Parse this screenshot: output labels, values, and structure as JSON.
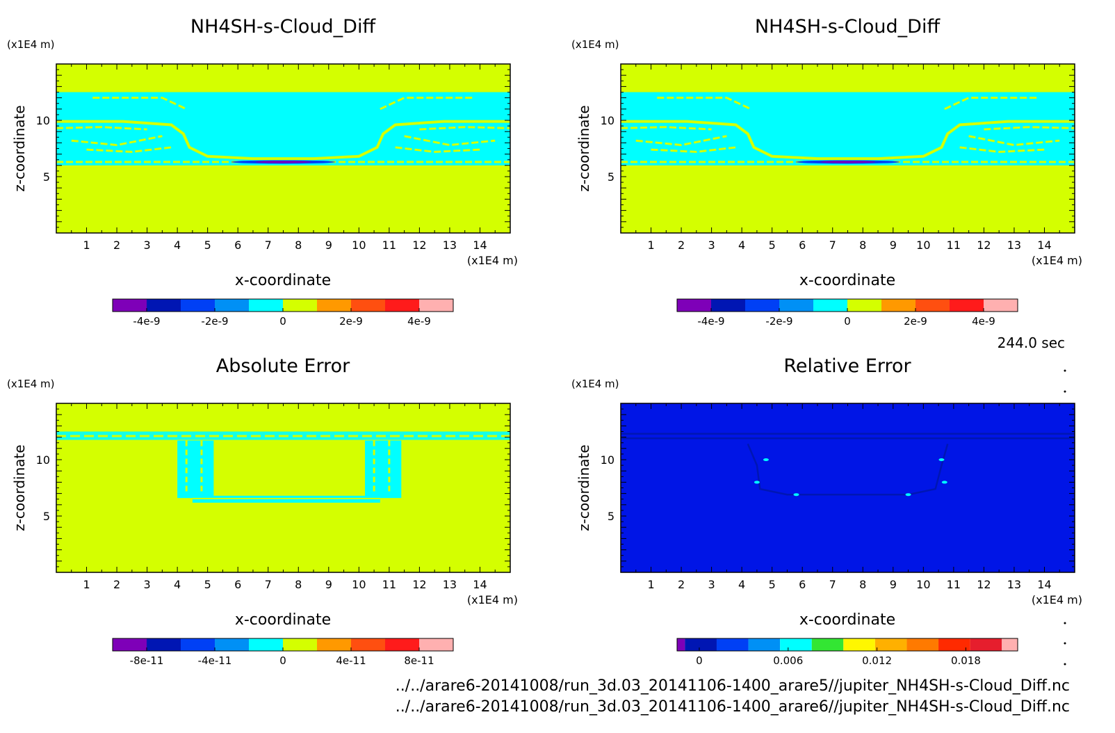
{
  "colors": {
    "cloud_cyan": "#00FFFF",
    "background_yellow": "#D4FF00",
    "relative_blue": "#0015E6",
    "frame": "#000000"
  },
  "footer": {
    "time": "244.0 sec",
    "file1": "../../arare6-20141008/run_3d.03_20141106-1400_arare5//jupiter_NH4SH-s-Cloud_Diff.nc",
    "file2": "../../arare6-20141008/run_3d.03_20141106-1400_arare6//jupiter_NH4SH-s-Cloud_Diff.nc"
  },
  "chart_data": [
    {
      "type": "heatmap",
      "title": "NH4SH-s-Cloud_Diff",
      "xlabel": "x-coordinate",
      "ylabel": "z-coordinate",
      "x_unit": "(x1E4 m)",
      "y_unit": "(x1E4 m)",
      "xlim": [
        0,
        15
      ],
      "ylim": [
        0,
        15
      ],
      "x_ticks": [
        1,
        2,
        3,
        4,
        5,
        6,
        7,
        8,
        9,
        10,
        11,
        12,
        13,
        14
      ],
      "y_ticks": [
        5,
        10
      ],
      "cloud_layer": [
        6,
        12.5
      ],
      "colorbar": {
        "colors": [
          "#7E00B8",
          "#0016B3",
          "#0040F5",
          "#0090F5",
          "#00FFFF",
          "#D4FF00",
          "#FF9900",
          "#FF4F10",
          "#FF1B1B",
          "#FFB0B0"
        ],
        "tick_labels": [
          "-4e-9",
          "-2e-9",
          "0",
          "2e-9",
          "4e-9"
        ],
        "tick_values": [
          -4e-09,
          -2e-09,
          0,
          2e-09,
          4e-09
        ],
        "range": [
          -5e-09,
          5e-09
        ]
      }
    },
    {
      "type": "heatmap",
      "title": "NH4SH-s-Cloud_Diff",
      "xlabel": "x-coordinate",
      "ylabel": "z-coordinate",
      "x_unit": "(x1E4 m)",
      "y_unit": "(x1E4 m)",
      "xlim": [
        0,
        15
      ],
      "ylim": [
        0,
        15
      ],
      "x_ticks": [
        1,
        2,
        3,
        4,
        5,
        6,
        7,
        8,
        9,
        10,
        11,
        12,
        13,
        14
      ],
      "y_ticks": [
        5,
        10
      ],
      "cloud_layer": [
        6,
        12.5
      ],
      "colorbar": {
        "colors": [
          "#7E00B8",
          "#0016B3",
          "#0040F5",
          "#0090F5",
          "#00FFFF",
          "#D4FF00",
          "#FF9900",
          "#FF4F10",
          "#FF1B1B",
          "#FFB0B0"
        ],
        "tick_labels": [
          "-4e-9",
          "-2e-9",
          "0",
          "2e-9",
          "4e-9"
        ],
        "tick_values": [
          -4e-09,
          -2e-09,
          0,
          2e-09,
          4e-09
        ],
        "range": [
          -5e-09,
          5e-09
        ]
      }
    },
    {
      "type": "heatmap",
      "title": "Absolute Error",
      "xlabel": "x-coordinate",
      "ylabel": "z-coordinate",
      "x_unit": "(x1E4 m)",
      "y_unit": "(x1E4 m)",
      "xlim": [
        0,
        15
      ],
      "ylim": [
        0,
        15
      ],
      "x_ticks": [
        1,
        2,
        3,
        4,
        5,
        6,
        7,
        8,
        9,
        10,
        11,
        12,
        13,
        14
      ],
      "y_ticks": [
        5,
        10
      ],
      "colorbar": {
        "colors": [
          "#7E00B8",
          "#0016B3",
          "#0040F5",
          "#0090F5",
          "#00FFFF",
          "#D4FF00",
          "#FF9900",
          "#FF4F10",
          "#FF1B1B",
          "#FFB0B0"
        ],
        "tick_labels": [
          "-8e-11",
          "-4e-11",
          "0",
          "4e-11",
          "8e-11"
        ],
        "tick_values": [
          -8e-11,
          -4e-11,
          0,
          4e-11,
          8e-11
        ],
        "range": [
          -1e-10,
          1e-10
        ]
      }
    },
    {
      "type": "heatmap",
      "title": "Relative Error",
      "xlabel": "x-coordinate",
      "ylabel": "z-coordinate",
      "x_unit": "(x1E4 m)",
      "y_unit": "(x1E4 m)",
      "xlim": [
        0,
        15
      ],
      "ylim": [
        0,
        15
      ],
      "x_ticks": [
        1,
        2,
        3,
        4,
        5,
        6,
        7,
        8,
        9,
        10,
        11,
        12,
        13,
        14
      ],
      "y_ticks": [
        5,
        10
      ],
      "colorbar": {
        "colors": [
          "#7E00B8",
          "#0016B3",
          "#0040F5",
          "#0090F5",
          "#00FFFF",
          "#33E633",
          "#FFF700",
          "#FFB000",
          "#FF7A00",
          "#FF2A00",
          "#E61E2D",
          "#FFB0B0"
        ],
        "widths": [
          0.5,
          2,
          2,
          2,
          2,
          2,
          2,
          2,
          2,
          2,
          2,
          1
        ],
        "tick_labels": [
          "0",
          "0.006",
          "0.012",
          "0.018"
        ],
        "tick_values": [
          0,
          0.006,
          0.012,
          0.018
        ],
        "range": [
          -0.0015,
          0.0215
        ]
      }
    }
  ]
}
